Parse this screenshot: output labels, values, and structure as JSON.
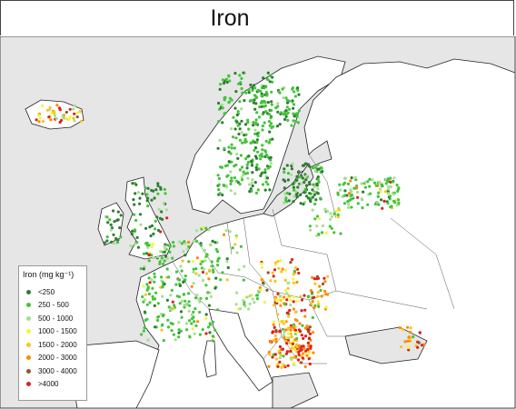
{
  "header": {
    "title": "Iron"
  },
  "legend": {
    "title": "Iron (mg kg⁻¹)",
    "items": [
      {
        "label": "<250",
        "color": "#2e7d32"
      },
      {
        "label": "250 - 500",
        "color": "#44c43c"
      },
      {
        "label": "500 - 1000",
        "color": "#a6e08c"
      },
      {
        "label": "1000 - 1500",
        "color": "#f5f53a"
      },
      {
        "label": "1500 - 2000",
        "color": "#ffc21e"
      },
      {
        "label": "2000 - 3000",
        "color": "#ff8a00"
      },
      {
        "label": "3000 - 4000",
        "color": "#8b5a2b"
      },
      {
        "label": ">4000",
        "color": "#e0201e"
      }
    ]
  }
}
